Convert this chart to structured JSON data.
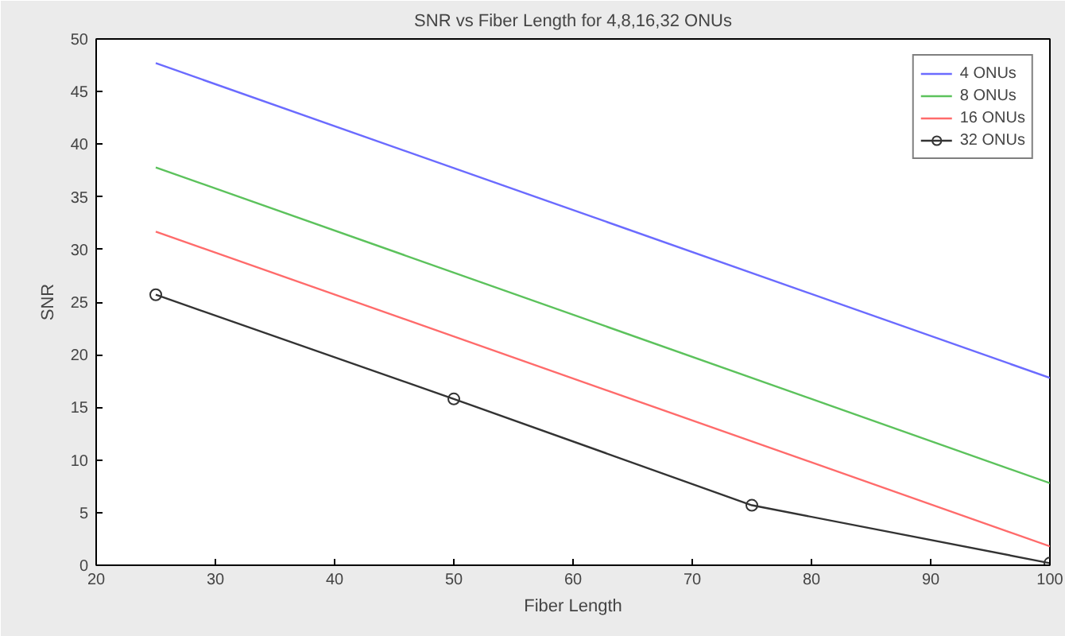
{
  "chart_data": {
    "type": "line",
    "title": "SNR vs Fiber Length for 4,8,16,32 ONUs",
    "xlabel": "Fiber Length",
    "ylabel": "SNR",
    "x": [
      25,
      100
    ],
    "series": [
      {
        "name": "4 ONUs",
        "color": "#6b6bff",
        "values": [
          47.7,
          17.8
        ],
        "marker": "none"
      },
      {
        "name": "8 ONUs",
        "color": "#5cc25c",
        "values": [
          37.8,
          7.8
        ],
        "marker": "none"
      },
      {
        "name": "16 ONUs",
        "color": "#ff6b6b",
        "values": [
          31.7,
          1.8
        ],
        "marker": "none"
      },
      {
        "name": "32 ONUs",
        "color": "#333333",
        "x": [
          25,
          50,
          75,
          100
        ],
        "values": [
          25.7,
          15.8,
          5.7,
          0.2
        ],
        "marker": "circle"
      }
    ],
    "xlim": [
      20,
      100
    ],
    "ylim": [
      0,
      50
    ],
    "xticks": [
      20,
      30,
      40,
      50,
      60,
      70,
      80,
      90,
      100
    ],
    "yticks": [
      0,
      5,
      10,
      15,
      20,
      25,
      30,
      35,
      40,
      45,
      50
    ],
    "grid": false,
    "legend": "top right",
    "line_style": "solid"
  }
}
